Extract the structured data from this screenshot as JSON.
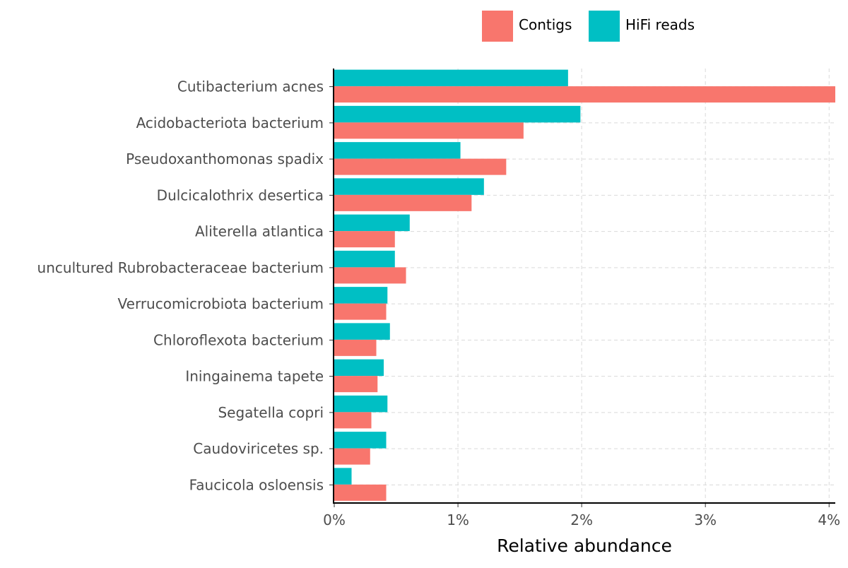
{
  "chart_data": {
    "type": "bar",
    "orientation": "horizontal",
    "title": "",
    "xlabel": "Relative abundance",
    "ylabel": "",
    "xlim": [
      0,
      4.05
    ],
    "x_ticks": [
      0,
      1,
      2,
      3,
      4
    ],
    "x_tick_labels": [
      "0%",
      "1%",
      "2%",
      "3%",
      "4%"
    ],
    "grid": true,
    "legend_position": "top-right",
    "categories": [
      "Cutibacterium acnes",
      "Acidobacteriota bacterium",
      "Pseudoxanthomonas spadix",
      "Dulcicalothrix desertica",
      "Aliterella atlantica",
      "uncultured Rubrobacteraceae bacterium",
      "Verrucomicrobiota bacterium",
      "Chloroflexota bacterium",
      "Iningainema tapete",
      "Segatella copri",
      "Caudoviricetes sp.",
      "Faucicola osloensis"
    ],
    "series": [
      {
        "name": "Contigs",
        "color": "#F8766D",
        "values": [
          4.05,
          1.53,
          1.39,
          1.11,
          0.49,
          0.58,
          0.42,
          0.34,
          0.35,
          0.3,
          0.29,
          0.42
        ]
      },
      {
        "name": "HiFi reads",
        "color": "#00BFC4",
        "values": [
          1.89,
          1.99,
          1.02,
          1.21,
          0.61,
          0.49,
          0.43,
          0.45,
          0.4,
          0.43,
          0.42,
          0.14
        ]
      }
    ]
  }
}
